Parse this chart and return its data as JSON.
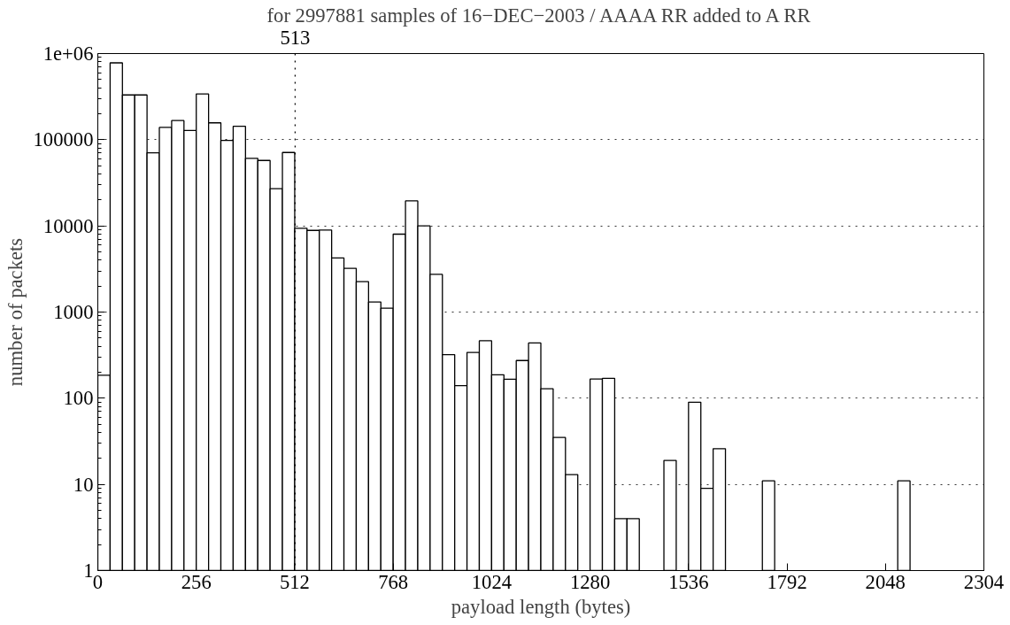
{
  "chart_data": {
    "type": "histogram",
    "title": "for 2997881 samples of 16−DEC−2003 / AAAA RR added to A RR",
    "xlabel": "payload length (bytes)",
    "ylabel": "number of packets",
    "bins": [
      0,
      32,
      64,
      96,
      128,
      160,
      192,
      224,
      256,
      288,
      320,
      352,
      384,
      416,
      448,
      480,
      512,
      544,
      576,
      608,
      640,
      672,
      704,
      736,
      768,
      800,
      832,
      864,
      896,
      928,
      960,
      992,
      1024,
      1056,
      1088,
      1120,
      1152,
      1184,
      1216,
      1248,
      1280,
      1312,
      1344,
      1376,
      1408,
      1440,
      1472,
      1504,
      1536,
      1568,
      1600,
      1632,
      1664,
      1696,
      1728,
      1760,
      1792,
      1824,
      1856,
      1888,
      1920,
      1952,
      1984,
      2016,
      2048,
      2080,
      2112,
      2144,
      2176,
      2208,
      2240,
      2272,
      2304
    ],
    "values": [
      185,
      780000,
      331000,
      331000,
      70500,
      139000,
      167000,
      128000,
      340000,
      157000,
      98000,
      143000,
      60800,
      57500,
      27000,
      71100,
      9380,
      8870,
      8950,
      4250,
      3220,
      2250,
      1310,
      1110,
      8020,
      19500,
      10000,
      2740,
      321,
      140,
      340,
      464,
      187,
      166,
      274,
      438,
      129,
      35,
      13,
      null,
      167,
      170,
      4,
      4,
      null,
      null,
      19,
      null,
      90,
      9,
      26,
      null,
      null,
      null,
      11,
      null,
      null,
      null,
      null,
      null,
      null,
      null,
      null,
      null,
      null,
      11,
      null,
      null,
      null,
      null,
      null,
      null
    ],
    "color": "#ffffff",
    "log": "y",
    "xlim": [
      0,
      2304
    ],
    "xticks": [
      0,
      256,
      512,
      768,
      1024,
      1280,
      1536,
      1792,
      2048,
      2304
    ],
    "ylim": [
      1,
      1000000
    ],
    "yticks": [
      1,
      10,
      100,
      1000,
      10000,
      100000,
      {
        "value": 1000000,
        "label": "1e+06"
      }
    ],
    "grid": "y",
    "ref_lines": [
      {
        "axis": "x",
        "value": 513,
        "label": "513",
        "line_style": "dotted"
      }
    ]
  }
}
